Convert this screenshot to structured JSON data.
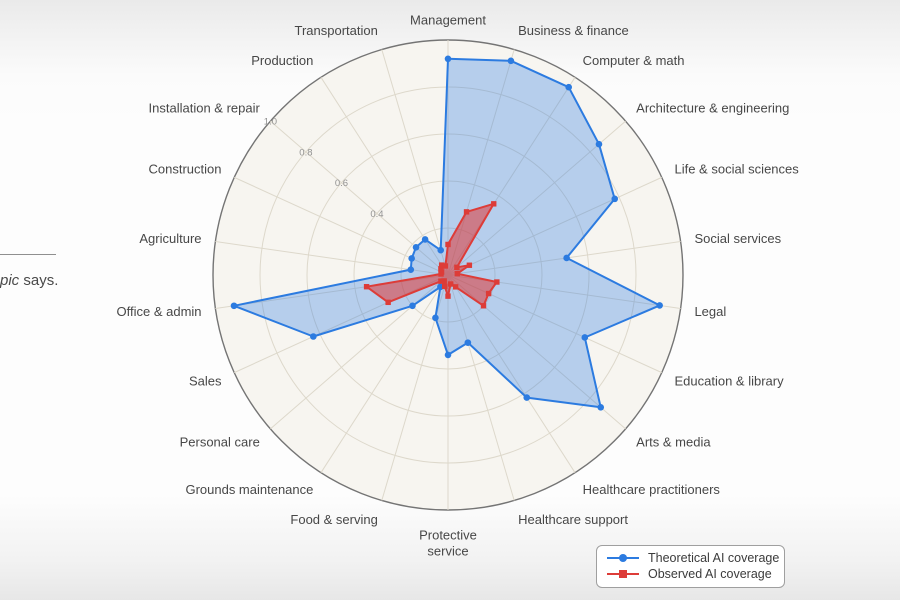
{
  "page": {
    "left_fragment": {
      "italic_text": "pic",
      "regular_text": " says."
    }
  },
  "legend": {
    "items": [
      {
        "label": "Theoretical AI coverage",
        "color": "#2c7be0",
        "marker": "circle"
      },
      {
        "label": "Observed AI coverage",
        "color": "#dd3c38",
        "marker": "square"
      }
    ]
  },
  "chart_data": {
    "type": "radar",
    "direction": "clockwise",
    "start_angle_deg": 90,
    "categories": [
      "Management",
      "Business & finance",
      "Computer & math",
      "Architecture & engineering",
      "Life & social sciences",
      "Social services",
      "Legal",
      "Education & library",
      "Arts & media",
      "Healthcare practitioners",
      "Healthcare support",
      "Protective service",
      "Food & serving",
      "Grounds maintenance",
      "Personal care",
      "Sales",
      "Office & admin",
      "Agriculture",
      "Construction",
      "Installation & repair",
      "Production",
      "Transportation"
    ],
    "series": [
      {
        "name": "Theoretical AI coverage",
        "marker": "circle",
        "color": "#2c7be0",
        "fill": "rgba(47,125,226,0.32)",
        "values": [
          0.92,
          0.95,
          0.95,
          0.85,
          0.78,
          0.51,
          0.91,
          0.64,
          0.86,
          0.62,
          0.3,
          0.34,
          0.19,
          0.06,
          0.2,
          0.63,
          0.92,
          0.16,
          0.17,
          0.18,
          0.18,
          0.11
        ]
      },
      {
        "name": "Observed AI coverage",
        "marker": "square",
        "color": "#dd3c38",
        "fill": "rgba(225,48,44,0.52)",
        "values": [
          0.13,
          0.28,
          0.36,
          0.05,
          0.1,
          0.04,
          0.21,
          0.19,
          0.2,
          0.06,
          0.04,
          0.09,
          0.05,
          0.03,
          0.04,
          0.28,
          0.35,
          0.03,
          0.03,
          0.04,
          0.05,
          0.04
        ]
      }
    ],
    "rmax": 1.0,
    "grid_levels": [
      0.2,
      0.4,
      0.6,
      0.8,
      1.0
    ],
    "radial_ticks": [
      "0.4",
      "0.6",
      "0.8",
      "1.0"
    ],
    "tick_axis_index": 19,
    "grid_on": true,
    "legend_position": "bottom-right",
    "colors": {
      "chart_bg": "#f7f5f0",
      "grid": "#ddd8cb",
      "outer_ring": "#747474",
      "axis_label": "#474747",
      "tick_label": "#929292"
    }
  }
}
